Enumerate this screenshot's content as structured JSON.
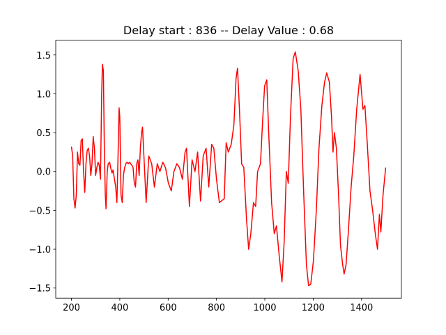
{
  "chart_data": {
    "type": "line",
    "title": "Delay start : 836 -- Delay Value : 0.68",
    "xlim": [
      135,
      1565
    ],
    "ylim": [
      -1.63,
      1.69
    ],
    "xticks": [
      200,
      400,
      600,
      800,
      1000,
      1200,
      1400
    ],
    "yticks": [
      {
        "value": -1.5,
        "label": "−1.5"
      },
      {
        "value": -1.0,
        "label": "−1.0"
      },
      {
        "value": -0.5,
        "label": "−0.5"
      },
      {
        "value": 0,
        "label": "0.0"
      },
      {
        "value": 0.5,
        "label": "0.5"
      },
      {
        "value": 1.0,
        "label": "1.0"
      },
      {
        "value": 1.5,
        "label": "1.5"
      }
    ],
    "series": [
      {
        "color": "#ff0000",
        "x": [
          200,
          205,
          210,
          215,
          220,
          225,
          230,
          235,
          240,
          245,
          250,
          255,
          260,
          265,
          270,
          275,
          280,
          285,
          290,
          295,
          300,
          305,
          310,
          315,
          320,
          325,
          328,
          332,
          336,
          340,
          343,
          348,
          352,
          358,
          362,
          368,
          372,
          378,
          383,
          388,
          392,
          397,
          400,
          405,
          410,
          415,
          420,
          425,
          430,
          435,
          440,
          445,
          450,
          455,
          460,
          465,
          470,
          475,
          480,
          485,
          490,
          494,
          509,
          520,
          532,
          543,
          555,
          566,
          578,
          589,
          601,
          613,
          624,
          636,
          647,
          659,
          670,
          676,
          688,
          699,
          711,
          722,
          734,
          745,
          757,
          768,
          780,
          789,
          800,
          812,
          820,
          832,
          840,
          849,
          861,
          872,
          881,
          887,
          895,
          904,
          913,
          924,
          933,
          942,
          953,
          962,
          970,
          982,
          990,
          999,
          1008,
          1016,
          1028,
          1039,
          1048,
          1060,
          1071,
          1080,
          1089,
          1097,
          1106,
          1117,
          1126,
          1138,
          1149,
          1161,
          1172,
          1181,
          1190,
          1201,
          1213,
          1224,
          1236,
          1247,
          1256,
          1267,
          1276,
          1282,
          1288,
          1296,
          1305,
          1313,
          1322,
          1328,
          1336,
          1345,
          1357,
          1368,
          1380,
          1394,
          1406,
          1414,
          1423,
          1435,
          1446,
          1457,
          1466,
          1474,
          1480,
          1489,
          1500
        ],
        "values": [
          0.32,
          0.2,
          -0.35,
          -0.47,
          -0.3,
          0.25,
          0.1,
          0.08,
          0.4,
          0.42,
          0.0,
          -0.27,
          0.1,
          0.27,
          0.3,
          0.2,
          -0.05,
          0.1,
          0.45,
          0.3,
          -0.05,
          0.05,
          0.12,
          0.08,
          -0.1,
          1.0,
          1.38,
          1.3,
          0.3,
          -0.3,
          -0.48,
          0.0,
          0.1,
          0.12,
          0.05,
          -0.02,
          0.02,
          -0.1,
          -0.2,
          -0.4,
          0.1,
          0.82,
          0.7,
          -0.3,
          -0.4,
          -0.05,
          0.05,
          0.1,
          0.12,
          0.1,
          0.12,
          0.1,
          0.08,
          0.05,
          -0.15,
          -0.2,
          0.1,
          0.15,
          -0.05,
          0.3,
          0.5,
          0.57,
          -0.4,
          0.2,
          0.1,
          -0.2,
          0.1,
          0.0,
          0.12,
          0.05,
          -0.15,
          -0.25,
          0.0,
          0.1,
          0.05,
          -0.1,
          0.25,
          0.3,
          -0.45,
          0.15,
          0.0,
          0.25,
          -0.38,
          0.2,
          0.3,
          -0.2,
          0.35,
          0.3,
          -0.1,
          -0.4,
          -0.38,
          -0.35,
          0.37,
          0.25,
          0.35,
          0.6,
          1.2,
          1.33,
          0.8,
          0.1,
          0.05,
          -0.6,
          -1.0,
          -0.8,
          -0.4,
          -0.45,
          0.0,
          0.1,
          0.6,
          1.1,
          1.18,
          0.5,
          -0.4,
          -0.8,
          -0.7,
          -1.1,
          -1.42,
          -0.9,
          0.0,
          -0.15,
          0.7,
          1.45,
          1.54,
          1.3,
          0.8,
          -0.3,
          -1.2,
          -1.47,
          -1.45,
          -1.15,
          -0.5,
          0.3,
          0.85,
          1.15,
          1.27,
          1.15,
          0.7,
          0.25,
          0.5,
          0.3,
          -0.3,
          -0.95,
          -1.2,
          -1.32,
          -1.2,
          -0.8,
          -0.2,
          0.2,
          0.8,
          1.25,
          0.8,
          0.85,
          0.4,
          -0.25,
          -0.5,
          -0.8,
          -1.0,
          -0.55,
          -0.78,
          -0.3,
          0.05
        ]
      }
    ]
  }
}
